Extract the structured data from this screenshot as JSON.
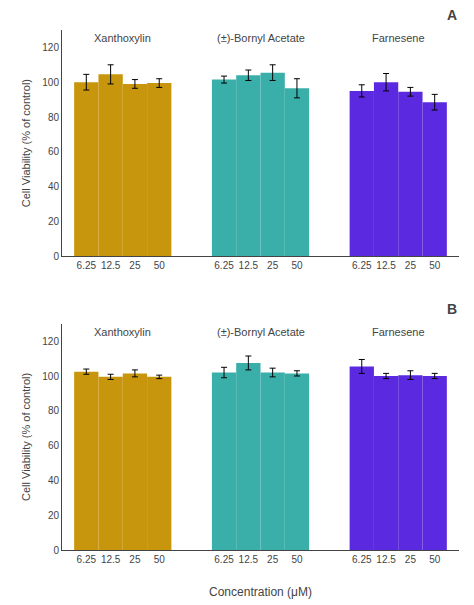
{
  "chart_data": [
    {
      "type": "bar",
      "categories": [
        "6.25",
        "12.5",
        "25",
        "50"
      ],
      "series": [
        {
          "name": "Xanthoxylin",
          "color": "#C8960C",
          "values": [
            100.0,
            104.5,
            99.0,
            99.5
          ],
          "errors": [
            4.5,
            5.5,
            2.5,
            2.5
          ]
        },
        {
          "name": "(±)-Bornyl Acetate",
          "color": "#3AAFA9",
          "values": [
            101.5,
            104.0,
            105.5,
            96.5
          ],
          "errors": [
            2.0,
            3.0,
            4.5,
            5.5
          ]
        },
        {
          "name": "Farnesene",
          "color": "#5B2AE0",
          "values": [
            95.0,
            100.0,
            94.5,
            88.5
          ],
          "errors": [
            3.5,
            5.0,
            2.5,
            4.5
          ]
        }
      ],
      "ylabel": "Cell Viability (% of control)",
      "ylim": [
        0,
        130
      ],
      "yticks": [
        0,
        20,
        40,
        60,
        80,
        100,
        120
      ],
      "grid": false,
      "annotations": [
        "A"
      ]
    },
    {
      "type": "bar",
      "categories": [
        "6.25",
        "12.5",
        "25",
        "50"
      ],
      "series": [
        {
          "name": "Xanthoxylin",
          "color": "#C8960C",
          "values": [
            102.5,
            99.5,
            101.5,
            99.5
          ],
          "errors": [
            1.5,
            1.5,
            2.0,
            1.0
          ]
        },
        {
          "name": "(±)-Bornyl Acetate",
          "color": "#3AAFA9",
          "values": [
            102.0,
            107.5,
            102.0,
            101.5
          ],
          "errors": [
            3.0,
            4.0,
            2.5,
            1.5
          ]
        },
        {
          "name": "Farnesene",
          "color": "#5B2AE0",
          "values": [
            105.5,
            100.0,
            100.5,
            100.0
          ],
          "errors": [
            4.0,
            1.5,
            2.5,
            1.5
          ]
        }
      ],
      "xlabel": "Concentration (μM)",
      "ylabel": "Cell Viability (% of control)",
      "ylim": [
        0,
        130
      ],
      "yticks": [
        0,
        20,
        40,
        60,
        80,
        100,
        120
      ],
      "grid": false,
      "annotations": [
        "B"
      ]
    }
  ]
}
